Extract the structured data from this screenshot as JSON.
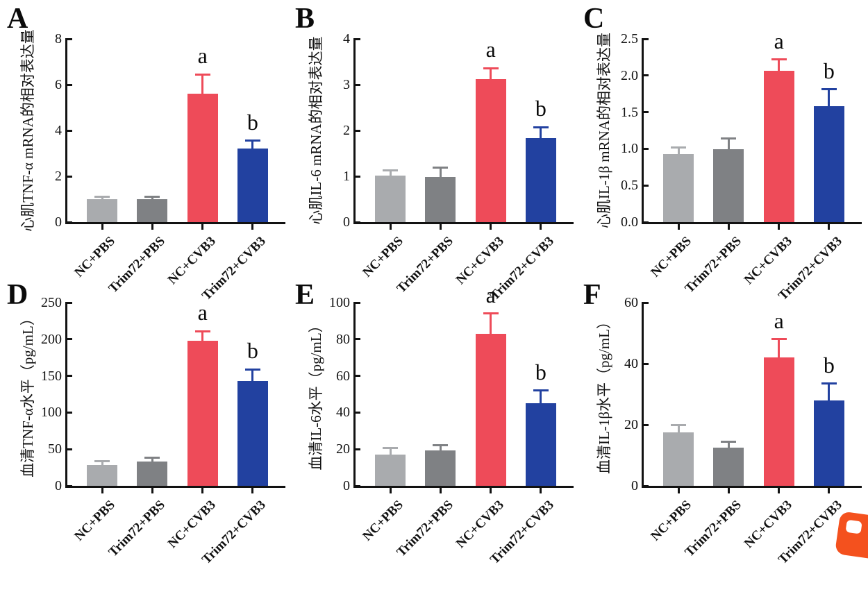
{
  "figure": {
    "type": "multi-panel-bar-figure",
    "panel_count": 6
  },
  "shared": {
    "categories": [
      "NC+PBS",
      "Trim72+PBS",
      "NC+CVB3",
      "Trim72+CVB3"
    ],
    "bar_colors": [
      "#a9abae",
      "#7f8184",
      "#ee4b59",
      "#2241a0"
    ],
    "sig_labels": [
      "",
      "",
      "a",
      "b"
    ],
    "axis_color": "#121212",
    "grid": false,
    "legend": "none"
  },
  "chart_data": [
    {
      "panel_letter": "A",
      "type": "bar",
      "title": "",
      "ylabel": "心肌TNF-α mRNA的相对表达量",
      "xlabel": "",
      "categories": [
        "NC+PBS",
        "Trim72+PBS",
        "NC+CVB3",
        "Trim72+CVB3"
      ],
      "values": [
        1.0,
        1.0,
        5.6,
        3.2
      ],
      "errors": [
        0.12,
        0.12,
        0.85,
        0.35
      ],
      "sig_labels": [
        "",
        "",
        "a",
        "b"
      ],
      "ylim": [
        0,
        8
      ],
      "yticks": [
        "0",
        "2",
        "4",
        "6",
        "8"
      ]
    },
    {
      "panel_letter": "B",
      "type": "bar",
      "title": "",
      "ylabel": "心肌IL-6 mRNA的相对表达量",
      "xlabel": "",
      "categories": [
        "NC+PBS",
        "Trim72+PBS",
        "NC+CVB3",
        "Trim72+CVB3"
      ],
      "values": [
        1.02,
        0.98,
        3.12,
        1.83
      ],
      "errors": [
        0.11,
        0.21,
        0.24,
        0.24
      ],
      "sig_labels": [
        "",
        "",
        "a",
        "b"
      ],
      "ylim": [
        0,
        4
      ],
      "yticks": [
        "0",
        "1",
        "2",
        "3",
        "4"
      ]
    },
    {
      "panel_letter": "C",
      "type": "bar",
      "title": "",
      "ylabel": "心肌IL-1β mRNA的相对表达量",
      "xlabel": "",
      "categories": [
        "NC+PBS",
        "Trim72+PBS",
        "NC+CVB3",
        "Trim72+CVB3"
      ],
      "values": [
        0.93,
        0.99,
        2.06,
        1.58
      ],
      "errors": [
        0.09,
        0.15,
        0.16,
        0.23
      ],
      "sig_labels": [
        "",
        "",
        "a",
        "b"
      ],
      "ylim": [
        0,
        2.5
      ],
      "yticks": [
        "0.0",
        "0.5",
        "1.0",
        "1.5",
        "2.0",
        "2.5"
      ]
    },
    {
      "panel_letter": "D",
      "type": "bar",
      "title": "",
      "ylabel": "血清TNF-α水平（pg/mL）",
      "xlabel": "",
      "categories": [
        "NC+PBS",
        "Trim72+PBS",
        "NC+CVB3",
        "Trim72+CVB3"
      ],
      "values": [
        28,
        33,
        198,
        143
      ],
      "errors": [
        6,
        5,
        13,
        16
      ],
      "sig_labels": [
        "",
        "",
        "a",
        "b"
      ],
      "ylim": [
        0,
        250
      ],
      "yticks": [
        "0",
        "50",
        "100",
        "150",
        "200",
        "250"
      ]
    },
    {
      "panel_letter": "E",
      "type": "bar",
      "title": "",
      "ylabel": "血清IL-6水平（pg/mL）",
      "xlabel": "",
      "categories": [
        "NC+PBS",
        "Trim72+PBS",
        "NC+CVB3",
        "Trim72+CVB3"
      ],
      "values": [
        17,
        19.5,
        83,
        45
      ],
      "errors": [
        3.5,
        2.5,
        11,
        7
      ],
      "sig_labels": [
        "",
        "",
        "a",
        "b"
      ],
      "ylim": [
        0,
        100
      ],
      "yticks": [
        "0",
        "20",
        "40",
        "60",
        "80",
        "100"
      ]
    },
    {
      "panel_letter": "F",
      "type": "bar",
      "title": "",
      "ylabel": "血清IL-1β水平（pg/mL）",
      "xlabel": "",
      "categories": [
        "NC+PBS",
        "Trim72+PBS",
        "NC+CVB3",
        "Trim72+CVB3"
      ],
      "values": [
        17.5,
        12.5,
        42,
        28
      ],
      "errors": [
        2.5,
        2,
        6,
        5.5
      ],
      "sig_labels": [
        "",
        "",
        "a",
        "b"
      ],
      "ylim": [
        0,
        60
      ],
      "yticks": [
        "0",
        "20",
        "40",
        "60"
      ]
    }
  ],
  "watermark": {
    "name": "corner-logo",
    "color": "#f4511e"
  }
}
